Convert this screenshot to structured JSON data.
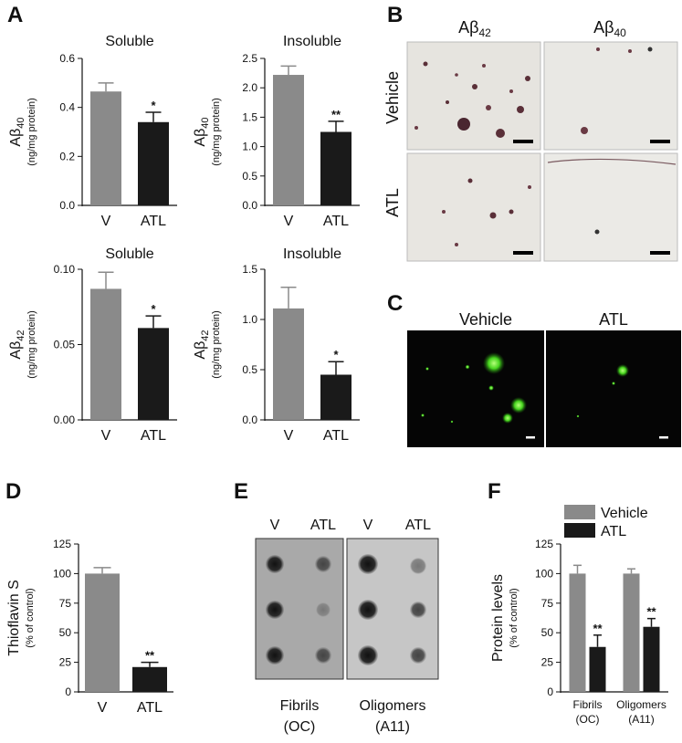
{
  "panels": {
    "A": "A",
    "B": "B",
    "C": "C",
    "D": "D",
    "E": "E",
    "F": "F"
  },
  "colors": {
    "vehicle": "#8a8a8a",
    "atl": "#1a1a1a"
  },
  "chart_data": [
    {
      "id": "a1",
      "type": "bar",
      "title": "Soluble",
      "ylabel_main": "Aβ",
      "ylabel_sub_script": "40",
      "ylabel_unit": "(ng/mg protein)",
      "categories": [
        "V",
        "ATL"
      ],
      "values": [
        0.465,
        0.34
      ],
      "errors": [
        0.035,
        0.04
      ],
      "stars": [
        "",
        "*"
      ],
      "ylim": [
        0,
        0.6
      ],
      "yticks": [
        0,
        0.2,
        0.4,
        0.6
      ],
      "yticklabels": [
        "0.0",
        "0.2",
        "0.4",
        "0.6"
      ]
    },
    {
      "id": "a2",
      "type": "bar",
      "title": "Insoluble",
      "ylabel_main": "Aβ",
      "ylabel_sub_script": "40",
      "ylabel_unit": "(ng/mg protein)",
      "categories": [
        "V",
        "ATL"
      ],
      "values": [
        2.22,
        1.25
      ],
      "errors": [
        0.15,
        0.18
      ],
      "stars": [
        "",
        "**"
      ],
      "ylim": [
        0,
        2.5
      ],
      "yticks": [
        0,
        0.5,
        1.0,
        1.5,
        2.0,
        2.5
      ],
      "yticklabels": [
        "0.0",
        "0.5",
        "1.0",
        "1.5",
        "2.0",
        "2.5"
      ]
    },
    {
      "id": "a3",
      "type": "bar",
      "title": "Soluble",
      "ylabel_main": "Aβ",
      "ylabel_sub_script": "42",
      "ylabel_unit": "(ng/mg protein)",
      "categories": [
        "V",
        "ATL"
      ],
      "values": [
        0.087,
        0.061
      ],
      "errors": [
        0.011,
        0.008
      ],
      "stars": [
        "",
        "*"
      ],
      "ylim": [
        0,
        0.1
      ],
      "yticks": [
        0,
        0.05,
        0.1
      ],
      "yticklabels": [
        "0.00",
        "0.05",
        "0.10"
      ]
    },
    {
      "id": "a4",
      "type": "bar",
      "title": "Insoluble",
      "ylabel_main": "Aβ",
      "ylabel_sub_script": "42",
      "ylabel_unit": "(ng/mg protein)",
      "categories": [
        "V",
        "ATL"
      ],
      "values": [
        1.11,
        0.45
      ],
      "errors": [
        0.21,
        0.13
      ],
      "stars": [
        "",
        "*"
      ],
      "ylim": [
        0,
        1.5
      ],
      "yticks": [
        0,
        0.5,
        1.0,
        1.5
      ],
      "yticklabels": [
        "0.0",
        "0.5",
        "1.0",
        "1.5"
      ]
    },
    {
      "id": "d",
      "type": "bar",
      "title": "",
      "ylabel_main": "Thioflavin S",
      "ylabel_sub_script": "",
      "ylabel_unit": "(% of control)",
      "categories": [
        "V",
        "ATL"
      ],
      "values": [
        100,
        21
      ],
      "errors": [
        5,
        4
      ],
      "stars": [
        "",
        "**"
      ],
      "ylim": [
        0,
        125
      ],
      "yticks": [
        0,
        25,
        50,
        75,
        100,
        125
      ],
      "yticklabels": [
        "0",
        "25",
        "50",
        "75",
        "100",
        "125"
      ]
    },
    {
      "id": "f",
      "type": "bar",
      "title": "",
      "ylabel_main": "Protein levels",
      "ylabel_sub_script": "",
      "ylabel_unit": "(% of control)",
      "categories": [
        "Fibrils\n(OC)",
        "Oligomers\n(A11)"
      ],
      "series": [
        {
          "name": "Vehicle",
          "values": [
            100,
            100
          ],
          "errors": [
            7,
            4
          ],
          "stars": [
            "",
            ""
          ]
        },
        {
          "name": "ATL",
          "values": [
            38,
            55
          ],
          "errors": [
            10,
            7
          ],
          "stars": [
            "**",
            "**"
          ]
        }
      ],
      "ylim": [
        0,
        125
      ],
      "yticks": [
        0,
        25,
        50,
        75,
        100,
        125
      ],
      "yticklabels": [
        "0",
        "25",
        "50",
        "75",
        "100",
        "125"
      ],
      "legend": "top"
    }
  ],
  "panel_b": {
    "col1_main": "Aβ",
    "col1_sub": "42",
    "col2_main": "Aβ",
    "col2_sub": "40",
    "row1": "Vehicle",
    "row2": "ATL"
  },
  "panel_c": {
    "col1": "Vehicle",
    "col2": "ATL"
  },
  "panel_e": {
    "col_labels": [
      "V",
      "ATL",
      "V",
      "ATL"
    ],
    "left_label_1": "Fibrils",
    "left_label_2": "(OC)",
    "right_label_1": "Oligomers",
    "right_label_2": "(A11)"
  }
}
